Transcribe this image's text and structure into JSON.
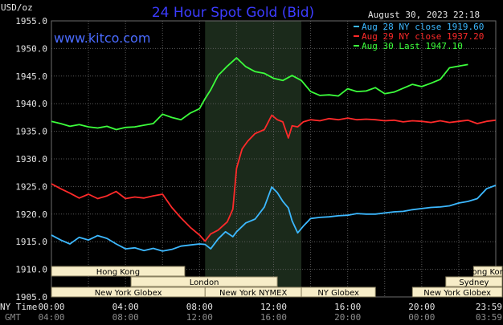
{
  "header": {
    "ylabel": "USD/oz",
    "title": "24 Hour Spot Gold (Bid)",
    "timestamp": "August 30, 2023 22:18",
    "watermark": "www.kitco.com"
  },
  "chart_data": {
    "type": "line",
    "title": "24 Hour Spot Gold (Bid)",
    "ylabel": "USD/oz",
    "xlabel": "NY Time / GMT",
    "ylim": [
      1905.0,
      1955.0
    ],
    "y_ticks": [
      "1955.0",
      "1950.0",
      "1945.0",
      "1940.0",
      "1935.0",
      "1930.0",
      "1925.0",
      "1920.0",
      "1915.0",
      "1910.0",
      "1905.0"
    ],
    "x_ticks_ny": [
      "00:00",
      "04:00",
      "08:00",
      "12:00",
      "16:00",
      "20:00",
      "23:59"
    ],
    "x_ticks_gmt": [
      "04:00",
      "08:00",
      "12:00",
      "16:00",
      "20:00",
      "00:00",
      "03:59"
    ],
    "x_axis_labels": [
      "NY Time",
      "GMT"
    ],
    "legend_position": "top-right",
    "grid": true,
    "highlight_band_hours": [
      8.3,
      13.5
    ],
    "series": [
      {
        "name": "Aug 28 NY close 1919.60",
        "color": "#3cb8ff",
        "x": [
          0,
          0.5,
          1,
          1.5,
          2,
          2.5,
          3,
          3.5,
          4,
          4.5,
          5,
          5.5,
          6,
          6.5,
          7,
          7.5,
          8,
          8.3,
          8.6,
          9,
          9.4,
          9.8,
          10,
          10.5,
          11,
          11.5,
          11.9,
          12.2,
          12.5,
          12.8,
          13,
          13.3,
          13.6,
          14,
          14.5,
          15,
          15.5,
          16,
          16.5,
          17,
          17.5,
          18,
          18.5,
          19,
          19.5,
          20,
          20.5,
          21,
          21.5,
          22,
          22.5,
          23,
          23.5,
          23.99
        ],
        "values": [
          1916.2,
          1915.3,
          1914.6,
          1915.8,
          1915.3,
          1916.1,
          1915.6,
          1914.6,
          1913.7,
          1913.9,
          1913.4,
          1913.8,
          1913.3,
          1913.6,
          1914.2,
          1914.4,
          1914.6,
          1914.5,
          1913.7,
          1915.5,
          1916.8,
          1915.9,
          1916.8,
          1918.4,
          1919.1,
          1921.3,
          1924.9,
          1923.9,
          1922.3,
          1921.1,
          1918.8,
          1916.6,
          1917.8,
          1919.2,
          1919.4,
          1919.5,
          1919.7,
          1919.8,
          1920.1,
          1920.0,
          1920.0,
          1920.2,
          1920.4,
          1920.5,
          1920.8,
          1921.0,
          1921.2,
          1921.3,
          1921.5,
          1922.0,
          1922.3,
          1922.8,
          1924.6,
          1925.2
        ]
      },
      {
        "name": "Aug 29 NY close 1937.20",
        "color": "#ff2a2a",
        "x": [
          0,
          0.5,
          1,
          1.5,
          2,
          2.5,
          3,
          3.5,
          4,
          4.5,
          5,
          5.5,
          6,
          6.5,
          7,
          7.5,
          8,
          8.3,
          8.6,
          9,
          9.5,
          9.8,
          10,
          10.3,
          10.6,
          11,
          11.5,
          11.9,
          12.2,
          12.5,
          12.8,
          13,
          13.3,
          13.6,
          14,
          14.5,
          15,
          15.5,
          16,
          16.5,
          17,
          17.5,
          18,
          18.5,
          19,
          19.5,
          20,
          20.5,
          21,
          21.5,
          22,
          22.5,
          23,
          23.5,
          23.99
        ],
        "values": [
          1925.5,
          1924.6,
          1923.8,
          1922.9,
          1923.6,
          1922.8,
          1923.3,
          1924.1,
          1922.8,
          1923.1,
          1922.9,
          1923.3,
          1923.6,
          1921.2,
          1919.3,
          1917.6,
          1916.2,
          1915.1,
          1916.4,
          1917.1,
          1918.6,
          1920.9,
          1928.3,
          1931.8,
          1933.2,
          1934.6,
          1935.3,
          1937.9,
          1937.1,
          1936.7,
          1933.8,
          1936.0,
          1935.8,
          1936.7,
          1937.1,
          1936.9,
          1937.3,
          1937.1,
          1937.4,
          1937.1,
          1937.2,
          1937.1,
          1936.9,
          1937.0,
          1936.7,
          1936.9,
          1936.8,
          1936.6,
          1936.9,
          1936.6,
          1936.8,
          1937.0,
          1936.4,
          1936.8,
          1937.0
        ]
      },
      {
        "name": "Aug 30 Last 1947.10",
        "color": "#3cff3c",
        "x": [
          0,
          0.5,
          1,
          1.5,
          2,
          2.5,
          3,
          3.5,
          4,
          4.5,
          5,
          5.5,
          6,
          6.5,
          7,
          7.5,
          8,
          8.3,
          8.6,
          9,
          9.5,
          10,
          10.5,
          11,
          11.5,
          12,
          12.5,
          13,
          13.5,
          14,
          14.5,
          15,
          15.5,
          16,
          16.5,
          17,
          17.5,
          18,
          18.5,
          19,
          19.5,
          20,
          20.5,
          21,
          21.5,
          22,
          22.5
        ],
        "values": [
          1936.8,
          1936.4,
          1935.9,
          1936.2,
          1935.8,
          1935.6,
          1935.9,
          1935.3,
          1935.7,
          1935.8,
          1936.1,
          1936.4,
          1938.1,
          1937.5,
          1937.1,
          1938.3,
          1939.1,
          1940.9,
          1942.5,
          1945.1,
          1946.8,
          1948.3,
          1946.7,
          1945.8,
          1945.5,
          1944.6,
          1944.2,
          1945.1,
          1944.2,
          1942.2,
          1941.5,
          1941.6,
          1941.4,
          1942.7,
          1942.2,
          1942.3,
          1942.9,
          1941.8,
          1942.1,
          1942.8,
          1943.5,
          1943.1,
          1943.7,
          1944.4,
          1946.5,
          1946.8,
          1947.1
        ]
      }
    ],
    "sessions": {
      "row1": [
        {
          "label": "Hong Kong",
          "start": 0,
          "end": 7.2
        },
        {
          "label": "Hong Kong",
          "start": 22.8,
          "end": 25.3
        }
      ],
      "row2": [
        {
          "label": "London",
          "start": 4.3,
          "end": 12.2
        },
        {
          "label": "Sydney",
          "start": 21.3,
          "end": 25.3
        }
      ],
      "row3": [
        {
          "label": "New York Globex",
          "start": 0,
          "end": 8.3
        },
        {
          "label": "New York NYMEX",
          "start": 8.3,
          "end": 13.5
        },
        {
          "label": "NY Globex",
          "start": 13.5,
          "end": 17.5
        },
        {
          "label": "New York Globex",
          "start": 19.5,
          "end": 25.3
        }
      ]
    }
  }
}
